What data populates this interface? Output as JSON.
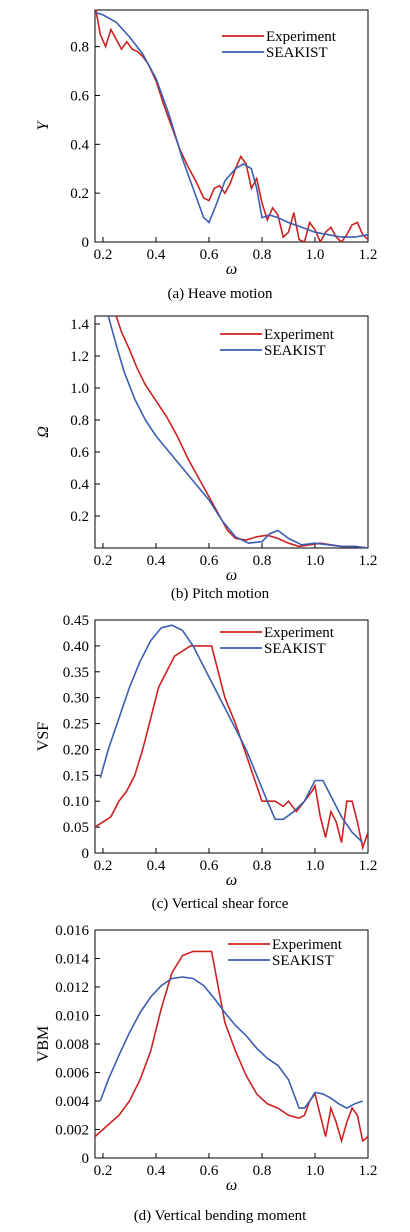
{
  "colors": {
    "experiment": "#cc2222",
    "seakist": "#3a5fb0"
  },
  "chart_data": [
    {
      "type": "line",
      "caption": "(a) Heave motion",
      "xlabel": "ω",
      "ylabel": "Y",
      "xlim": [
        0.17,
        1.2
      ],
      "ylim": [
        0,
        0.95
      ],
      "xticks": [
        0.2,
        0.4,
        0.6,
        0.8,
        1.0,
        1.2
      ],
      "xtick_labels": [
        "0.2",
        "0.4",
        "0.6",
        "0.8",
        "1.0",
        "1.2"
      ],
      "yticks": [
        0,
        0.2,
        0.4,
        0.6,
        0.8
      ],
      "ytick_labels": [
        "0",
        "0.2",
        "0.4",
        "0.6",
        "0.8"
      ],
      "legend_position": "top-right",
      "series": [
        {
          "name": "Experiment",
          "x": [
            0.17,
            0.19,
            0.21,
            0.23,
            0.25,
            0.27,
            0.29,
            0.31,
            0.33,
            0.35,
            0.37,
            0.4,
            0.43,
            0.46,
            0.49,
            0.52,
            0.55,
            0.58,
            0.6,
            0.62,
            0.64,
            0.66,
            0.68,
            0.7,
            0.72,
            0.74,
            0.76,
            0.78,
            0.8,
            0.82,
            0.84,
            0.86,
            0.88,
            0.9,
            0.92,
            0.94,
            0.96,
            0.98,
            1.0,
            1.02,
            1.04,
            1.06,
            1.08,
            1.1,
            1.12,
            1.14,
            1.16,
            1.18,
            1.2
          ],
          "values": [
            0.97,
            0.85,
            0.8,
            0.87,
            0.83,
            0.79,
            0.82,
            0.79,
            0.78,
            0.76,
            0.73,
            0.66,
            0.56,
            0.47,
            0.38,
            0.31,
            0.25,
            0.18,
            0.17,
            0.22,
            0.23,
            0.2,
            0.24,
            0.3,
            0.35,
            0.32,
            0.22,
            0.26,
            0.16,
            0.09,
            0.14,
            0.11,
            0.02,
            0.04,
            0.12,
            0.01,
            0.0,
            0.08,
            0.05,
            0.0,
            0.04,
            0.06,
            0.02,
            0.0,
            0.03,
            0.07,
            0.08,
            0.03,
            0.01
          ]
        },
        {
          "name": "SEAKIST",
          "x": [
            0.17,
            0.2,
            0.25,
            0.3,
            0.35,
            0.4,
            0.45,
            0.5,
            0.55,
            0.58,
            0.6,
            0.63,
            0.66,
            0.7,
            0.73,
            0.76,
            0.78,
            0.8,
            0.83,
            0.86,
            0.9,
            0.95,
            1.0,
            1.05,
            1.1,
            1.15,
            1.2
          ],
          "values": [
            0.94,
            0.93,
            0.9,
            0.84,
            0.77,
            0.67,
            0.52,
            0.34,
            0.19,
            0.1,
            0.08,
            0.16,
            0.25,
            0.3,
            0.32,
            0.3,
            0.22,
            0.1,
            0.11,
            0.1,
            0.08,
            0.06,
            0.04,
            0.03,
            0.02,
            0.02,
            0.03
          ]
        }
      ]
    },
    {
      "type": "line",
      "caption": "(b) Pitch motion",
      "xlabel": "ω",
      "ylabel": "Ω",
      "xlim": [
        0.17,
        1.2
      ],
      "ylim": [
        0,
        1.45
      ],
      "xticks": [
        0.2,
        0.4,
        0.6,
        0.8,
        1.0,
        1.2
      ],
      "xtick_labels": [
        "0.2",
        "0.4",
        "0.6",
        "0.8",
        "1.0",
        "1.2"
      ],
      "yticks": [
        0.2,
        0.4,
        0.6,
        0.8,
        1.0,
        1.2,
        1.4
      ],
      "ytick_labels": [
        "0.2",
        "0.4",
        "0.6",
        "0.8",
        "1.0",
        "1.2",
        "1.4"
      ],
      "legend_position": "top-right",
      "series": [
        {
          "name": "Experiment",
          "x": [
            0.25,
            0.27,
            0.3,
            0.33,
            0.36,
            0.4,
            0.44,
            0.48,
            0.52,
            0.56,
            0.6,
            0.64,
            0.67,
            0.7,
            0.74,
            0.78,
            0.82,
            0.86,
            0.9,
            0.94,
            0.98,
            1.02,
            1.06,
            1.1,
            1.15,
            1.2
          ],
          "values": [
            1.45,
            1.35,
            1.24,
            1.12,
            1.02,
            0.92,
            0.82,
            0.7,
            0.56,
            0.44,
            0.32,
            0.2,
            0.11,
            0.06,
            0.05,
            0.07,
            0.08,
            0.06,
            0.03,
            0.01,
            0.02,
            0.03,
            0.02,
            0.01,
            0.01,
            0.0
          ]
        },
        {
          "name": "SEAKIST",
          "x": [
            0.22,
            0.25,
            0.28,
            0.32,
            0.36,
            0.4,
            0.45,
            0.5,
            0.55,
            0.6,
            0.65,
            0.7,
            0.75,
            0.8,
            0.83,
            0.86,
            0.9,
            0.95,
            1.0,
            1.05,
            1.1,
            1.15,
            1.2
          ],
          "values": [
            1.45,
            1.27,
            1.1,
            0.93,
            0.8,
            0.7,
            0.6,
            0.5,
            0.4,
            0.3,
            0.17,
            0.07,
            0.03,
            0.04,
            0.09,
            0.11,
            0.06,
            0.02,
            0.03,
            0.02,
            0.01,
            0.01,
            0.0
          ]
        }
      ]
    },
    {
      "type": "line",
      "caption": "(c) Vertical shear force",
      "xlabel": "ω",
      "ylabel": "VSF",
      "xlim": [
        0.17,
        1.2
      ],
      "ylim": [
        0,
        0.45
      ],
      "xticks": [
        0.2,
        0.4,
        0.6,
        0.8,
        1.0,
        1.2
      ],
      "xtick_labels": [
        "0.2",
        "0.4",
        "0.6",
        "0.8",
        "1.0",
        "1.2"
      ],
      "yticks": [
        0,
        0.05,
        0.1,
        0.15,
        0.2,
        0.25,
        0.3,
        0.35,
        0.4,
        0.45
      ],
      "ytick_labels": [
        "0",
        "0.05",
        "0.10",
        "0.15",
        "0.20",
        "0.25",
        "0.30",
        "0.35",
        "0.40",
        "0.45"
      ],
      "legend_position": "top-right",
      "series": [
        {
          "name": "Experiment",
          "x": [
            0.17,
            0.2,
            0.23,
            0.26,
            0.29,
            0.32,
            0.35,
            0.38,
            0.41,
            0.44,
            0.47,
            0.5,
            0.53,
            0.56,
            0.59,
            0.61,
            0.63,
            0.66,
            0.7,
            0.74,
            0.78,
            0.8,
            0.82,
            0.85,
            0.88,
            0.9,
            0.93,
            0.96,
            0.99,
            1.0,
            1.02,
            1.04,
            1.06,
            1.08,
            1.1,
            1.12,
            1.14,
            1.16,
            1.18,
            1.2
          ],
          "values": [
            0.05,
            0.06,
            0.07,
            0.1,
            0.12,
            0.15,
            0.2,
            0.26,
            0.32,
            0.35,
            0.38,
            0.39,
            0.4,
            0.4,
            0.4,
            0.4,
            0.36,
            0.3,
            0.25,
            0.19,
            0.13,
            0.1,
            0.1,
            0.1,
            0.09,
            0.1,
            0.08,
            0.1,
            0.12,
            0.13,
            0.07,
            0.03,
            0.08,
            0.06,
            0.02,
            0.1,
            0.1,
            0.06,
            0.01,
            0.04
          ]
        },
        {
          "name": "SEAKIST",
          "x": [
            0.19,
            0.22,
            0.26,
            0.3,
            0.34,
            0.38,
            0.42,
            0.46,
            0.5,
            0.54,
            0.58,
            0.62,
            0.66,
            0.7,
            0.74,
            0.78,
            0.82,
            0.85,
            0.88,
            0.92,
            0.96,
            1.0,
            1.03,
            1.06,
            1.1,
            1.14,
            1.18
          ],
          "values": [
            0.145,
            0.2,
            0.26,
            0.32,
            0.37,
            0.41,
            0.435,
            0.44,
            0.43,
            0.4,
            0.36,
            0.32,
            0.28,
            0.24,
            0.2,
            0.15,
            0.1,
            0.065,
            0.065,
            0.08,
            0.1,
            0.14,
            0.14,
            0.11,
            0.07,
            0.04,
            0.02
          ]
        }
      ]
    },
    {
      "type": "line",
      "caption": "(d) Vertical bending moment",
      "xlabel": "ω",
      "ylabel": "VBM",
      "xlim": [
        0.17,
        1.2
      ],
      "ylim": [
        0,
        0.016
      ],
      "xticks": [
        0.2,
        0.4,
        0.6,
        0.8,
        1.0,
        1.2
      ],
      "xtick_labels": [
        "0.2",
        "0.4",
        "0.6",
        "0.8",
        "1.0",
        "1.2"
      ],
      "yticks": [
        0,
        0.002,
        0.004,
        0.006,
        0.008,
        0.01,
        0.012,
        0.014,
        0.016
      ],
      "ytick_labels": [
        "0",
        "0.002",
        "0.004",
        "0.006",
        "0.008",
        "0.010",
        "0.012",
        "0.014",
        "0.016"
      ],
      "legend_position": "top-right",
      "series": [
        {
          "name": "Experiment",
          "x": [
            0.17,
            0.2,
            0.23,
            0.26,
            0.3,
            0.34,
            0.38,
            0.42,
            0.46,
            0.5,
            0.54,
            0.58,
            0.61,
            0.63,
            0.66,
            0.7,
            0.74,
            0.78,
            0.82,
            0.86,
            0.9,
            0.94,
            0.96,
            0.98,
            1.0,
            1.02,
            1.04,
            1.06,
            1.08,
            1.1,
            1.12,
            1.14,
            1.16,
            1.18,
            1.2
          ],
          "values": [
            0.0015,
            0.002,
            0.0025,
            0.003,
            0.004,
            0.0055,
            0.0075,
            0.0105,
            0.013,
            0.0142,
            0.0145,
            0.0145,
            0.0145,
            0.0125,
            0.0095,
            0.0075,
            0.0058,
            0.0045,
            0.0038,
            0.0035,
            0.003,
            0.0028,
            0.003,
            0.004,
            0.0045,
            0.003,
            0.0015,
            0.0035,
            0.0025,
            0.0012,
            0.0025,
            0.0035,
            0.003,
            0.0012,
            0.0015
          ]
        },
        {
          "name": "SEAKIST",
          "x": [
            0.19,
            0.22,
            0.26,
            0.3,
            0.34,
            0.38,
            0.42,
            0.46,
            0.5,
            0.54,
            0.58,
            0.62,
            0.66,
            0.7,
            0.74,
            0.78,
            0.82,
            0.86,
            0.9,
            0.94,
            0.96,
            0.98,
            1.0,
            1.03,
            1.06,
            1.09,
            1.12,
            1.15,
            1.18
          ],
          "values": [
            0.004,
            0.0055,
            0.0072,
            0.0088,
            0.0102,
            0.0113,
            0.0121,
            0.0126,
            0.0127,
            0.0126,
            0.0121,
            0.0112,
            0.0102,
            0.0093,
            0.0086,
            0.0077,
            0.007,
            0.0065,
            0.0055,
            0.0035,
            0.0035,
            0.004,
            0.0046,
            0.0045,
            0.0042,
            0.0038,
            0.0035,
            0.0038,
            0.004
          ]
        }
      ]
    }
  ]
}
